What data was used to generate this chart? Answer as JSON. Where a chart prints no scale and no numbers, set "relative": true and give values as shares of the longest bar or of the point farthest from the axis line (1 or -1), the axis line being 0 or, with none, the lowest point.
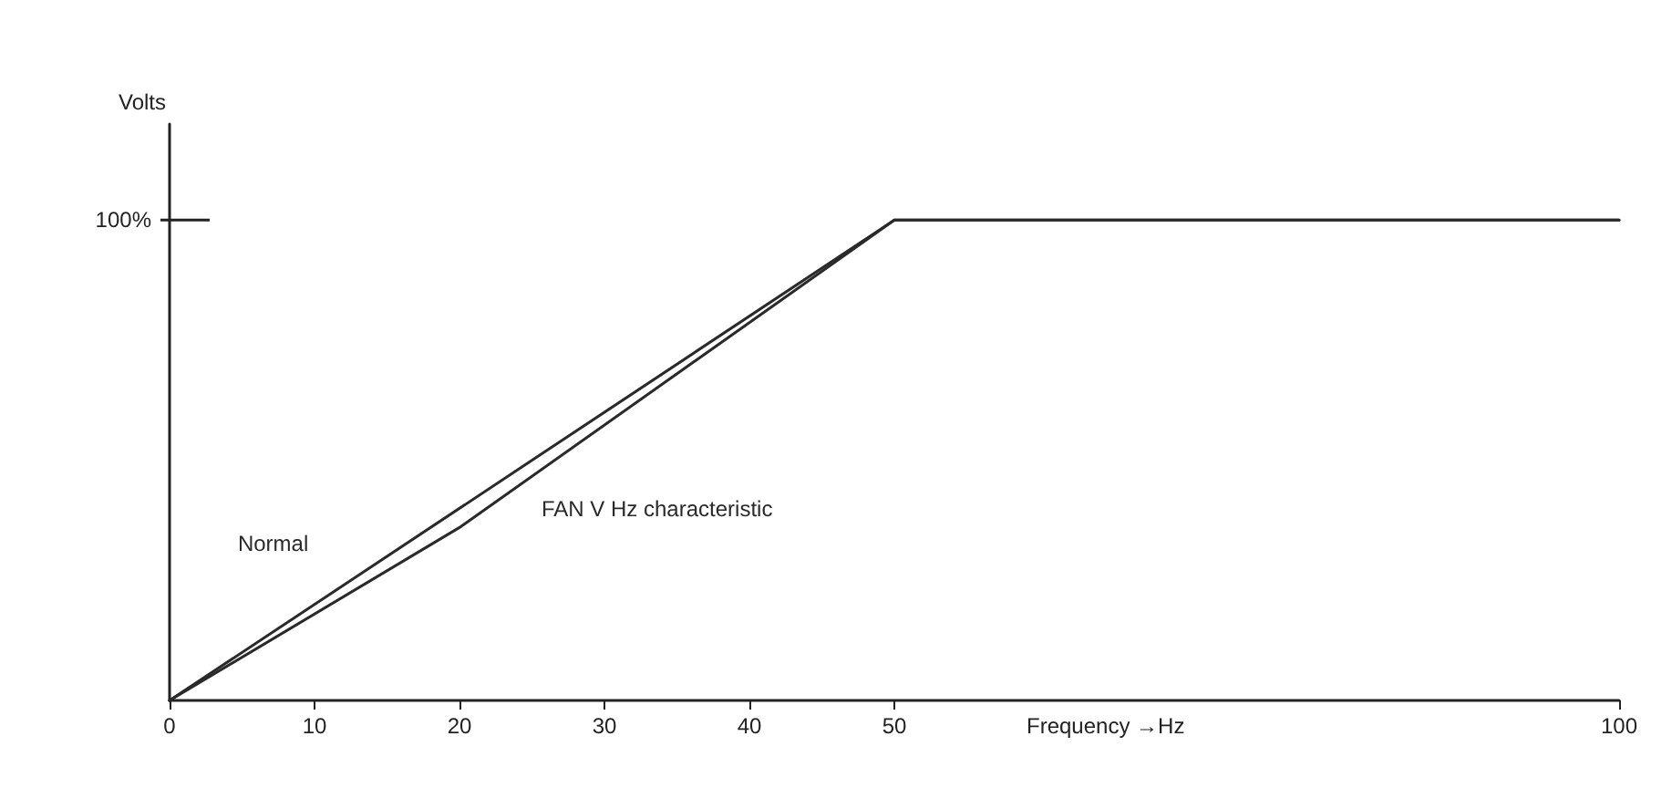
{
  "chart_data": {
    "type": "line",
    "xlabel": "Frequency →Hz",
    "ylabel": "Volts",
    "relative": true,
    "xlim": [
      0,
      100
    ],
    "xticks": [
      0,
      10,
      20,
      30,
      40,
      50,
      100
    ],
    "grid": false,
    "legend": false,
    "marker": "none",
    "line_style": "solid",
    "annotations": [
      "100%"
    ],
    "series": [
      {
        "name": "Normal",
        "color": "#2a2a2a",
        "x": [
          0,
          50,
          100
        ],
        "values": [
          0,
          1,
          1
        ]
      },
      {
        "name": "FAN V Hz characteristic",
        "color": "#2a2a2a",
        "x": [
          0,
          20,
          50,
          100
        ],
        "values": [
          0,
          0.36,
          1,
          1
        ]
      }
    ]
  }
}
